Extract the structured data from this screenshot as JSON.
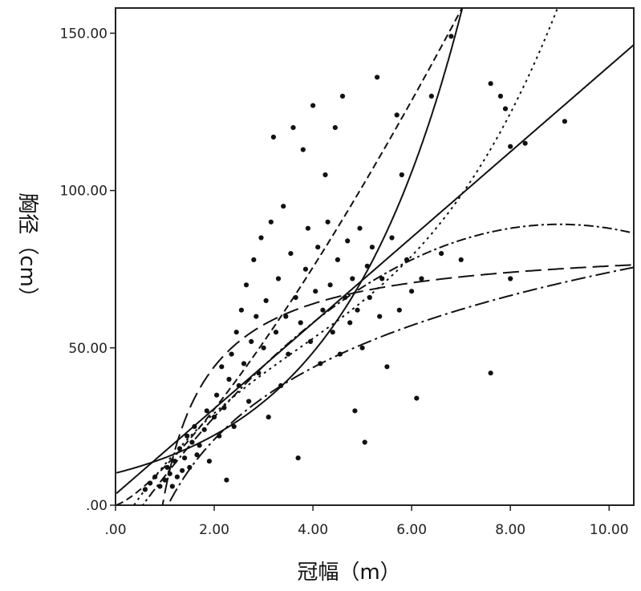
{
  "chart_data": {
    "type": "scatter",
    "xlabel": "冠幅（m）",
    "ylabel": "胸径（cm）",
    "xlim": [
      0,
      10.5
    ],
    "ylim": [
      0,
      158
    ],
    "x_ticks": [
      ".00",
      "2.00",
      "4.00",
      "6.00",
      "8.00",
      "10.00"
    ],
    "y_ticks": [
      ".00",
      "50.00",
      "100.00",
      "150.00"
    ],
    "grid": false,
    "legend": "none",
    "series": [
      {
        "kind": "scatter",
        "points": [
          [
            0.6,
            5
          ],
          [
            0.7,
            7
          ],
          [
            0.8,
            9
          ],
          [
            0.9,
            6
          ],
          [
            1.0,
            8
          ],
          [
            1.05,
            12
          ],
          [
            1.1,
            10
          ],
          [
            1.15,
            6
          ],
          [
            1.2,
            14
          ],
          [
            1.25,
            9
          ],
          [
            1.3,
            18
          ],
          [
            1.35,
            11
          ],
          [
            1.4,
            15
          ],
          [
            1.45,
            22
          ],
          [
            1.5,
            12
          ],
          [
            1.55,
            20
          ],
          [
            1.6,
            25
          ],
          [
            1.65,
            16
          ],
          [
            1.7,
            19
          ],
          [
            1.8,
            24
          ],
          [
            1.85,
            30
          ],
          [
            1.9,
            14
          ],
          [
            2.0,
            28
          ],
          [
            2.05,
            35
          ],
          [
            2.1,
            22
          ],
          [
            2.15,
            44
          ],
          [
            2.2,
            31
          ],
          [
            2.25,
            8
          ],
          [
            2.3,
            40
          ],
          [
            2.35,
            48
          ],
          [
            2.4,
            25
          ],
          [
            2.45,
            55
          ],
          [
            2.5,
            38
          ],
          [
            2.55,
            62
          ],
          [
            2.6,
            45
          ],
          [
            2.65,
            70
          ],
          [
            2.7,
            33
          ],
          [
            2.75,
            52
          ],
          [
            2.8,
            78
          ],
          [
            2.85,
            60
          ],
          [
            2.9,
            42
          ],
          [
            2.95,
            85
          ],
          [
            3.0,
            50
          ],
          [
            3.05,
            65
          ],
          [
            3.1,
            28
          ],
          [
            3.15,
            90
          ],
          [
            3.2,
            117
          ],
          [
            3.25,
            55
          ],
          [
            3.3,
            72
          ],
          [
            3.35,
            38
          ],
          [
            3.4,
            95
          ],
          [
            3.45,
            60
          ],
          [
            3.5,
            48
          ],
          [
            3.55,
            80
          ],
          [
            3.6,
            120
          ],
          [
            3.65,
            66
          ],
          [
            3.7,
            15
          ],
          [
            3.75,
            58
          ],
          [
            3.8,
            113
          ],
          [
            3.85,
            75
          ],
          [
            3.9,
            88
          ],
          [
            3.95,
            52
          ],
          [
            4.0,
            127
          ],
          [
            4.05,
            68
          ],
          [
            4.1,
            82
          ],
          [
            4.15,
            45
          ],
          [
            4.2,
            62
          ],
          [
            4.25,
            105
          ],
          [
            4.3,
            90
          ],
          [
            4.35,
            70
          ],
          [
            4.4,
            55
          ],
          [
            4.45,
            120
          ],
          [
            4.5,
            78
          ],
          [
            4.55,
            48
          ],
          [
            4.6,
            130
          ],
          [
            4.65,
            66
          ],
          [
            4.7,
            84
          ],
          [
            4.75,
            58
          ],
          [
            4.8,
            72
          ],
          [
            4.85,
            30
          ],
          [
            4.9,
            62
          ],
          [
            4.95,
            88
          ],
          [
            5.0,
            50
          ],
          [
            5.05,
            20
          ],
          [
            5.1,
            76
          ],
          [
            5.15,
            66
          ],
          [
            5.2,
            82
          ],
          [
            5.3,
            136
          ],
          [
            5.35,
            60
          ],
          [
            5.4,
            72
          ],
          [
            5.5,
            44
          ],
          [
            5.6,
            85
          ],
          [
            5.7,
            124
          ],
          [
            5.75,
            62
          ],
          [
            5.8,
            105
          ],
          [
            5.9,
            78
          ],
          [
            6.0,
            68
          ],
          [
            6.1,
            34
          ],
          [
            6.2,
            72
          ],
          [
            6.4,
            130
          ],
          [
            6.6,
            80
          ],
          [
            6.8,
            149
          ],
          [
            7.0,
            78
          ],
          [
            7.6,
            134
          ],
          [
            7.6,
            42
          ],
          [
            7.8,
            130
          ],
          [
            7.9,
            126
          ],
          [
            8.0,
            114
          ],
          [
            8.0,
            72
          ],
          [
            8.3,
            115
          ],
          [
            9.1,
            122
          ]
        ]
      },
      {
        "kind": "fit",
        "model": "linear",
        "dash": "solid",
        "intercept": 3.5,
        "slope": 13.6
      },
      {
        "kind": "fit",
        "model": "exponential",
        "dash": "solid",
        "a": 10.2,
        "b": 0.39
      },
      {
        "kind": "fit",
        "model": "power",
        "dash": "dashed",
        "a": 12.3,
        "b": 1.31
      },
      {
        "kind": "fit",
        "model": "cubic",
        "dash": "dotted",
        "c0": -9.0,
        "c1": 25.5,
        "c2": -3.9,
        "c3": 0.35
      },
      {
        "kind": "fit",
        "model": "quadratic",
        "dash": "dash-dot",
        "c0": -12.0,
        "c1": 22.5,
        "c2": -1.25
      },
      {
        "kind": "fit",
        "model": "logarithmic",
        "dash": "long-dash-dot",
        "a": -2.0,
        "b": 33.0
      },
      {
        "kind": "fit",
        "model": "inverse",
        "dash": "long-dash",
        "a": 84.0,
        "b": -80.0
      }
    ]
  }
}
